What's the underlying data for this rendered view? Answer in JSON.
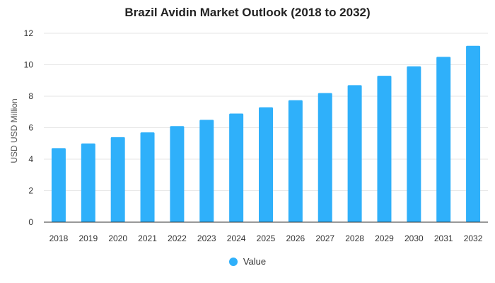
{
  "chart_data": {
    "type": "bar",
    "title": "Brazil Avidin Market Outlook (2018 to 2032)",
    "xlabel": "",
    "ylabel": "USD USD Million",
    "categories": [
      "2018",
      "2019",
      "2020",
      "2021",
      "2022",
      "2023",
      "2024",
      "2025",
      "2026",
      "2027",
      "2028",
      "2029",
      "2030",
      "2031",
      "2032"
    ],
    "series": [
      {
        "name": "Value",
        "values": [
          4.7,
          5.0,
          5.4,
          5.7,
          6.1,
          6.5,
          6.9,
          7.3,
          7.75,
          8.2,
          8.7,
          9.3,
          9.9,
          10.5,
          11.2
        ]
      }
    ],
    "ylim": [
      0,
      12
    ],
    "yticks": [
      0,
      2,
      4,
      6,
      8,
      10,
      12
    ],
    "grid": true,
    "legend_position": "bottom-center",
    "bar_color": "#2fb0fa"
  }
}
